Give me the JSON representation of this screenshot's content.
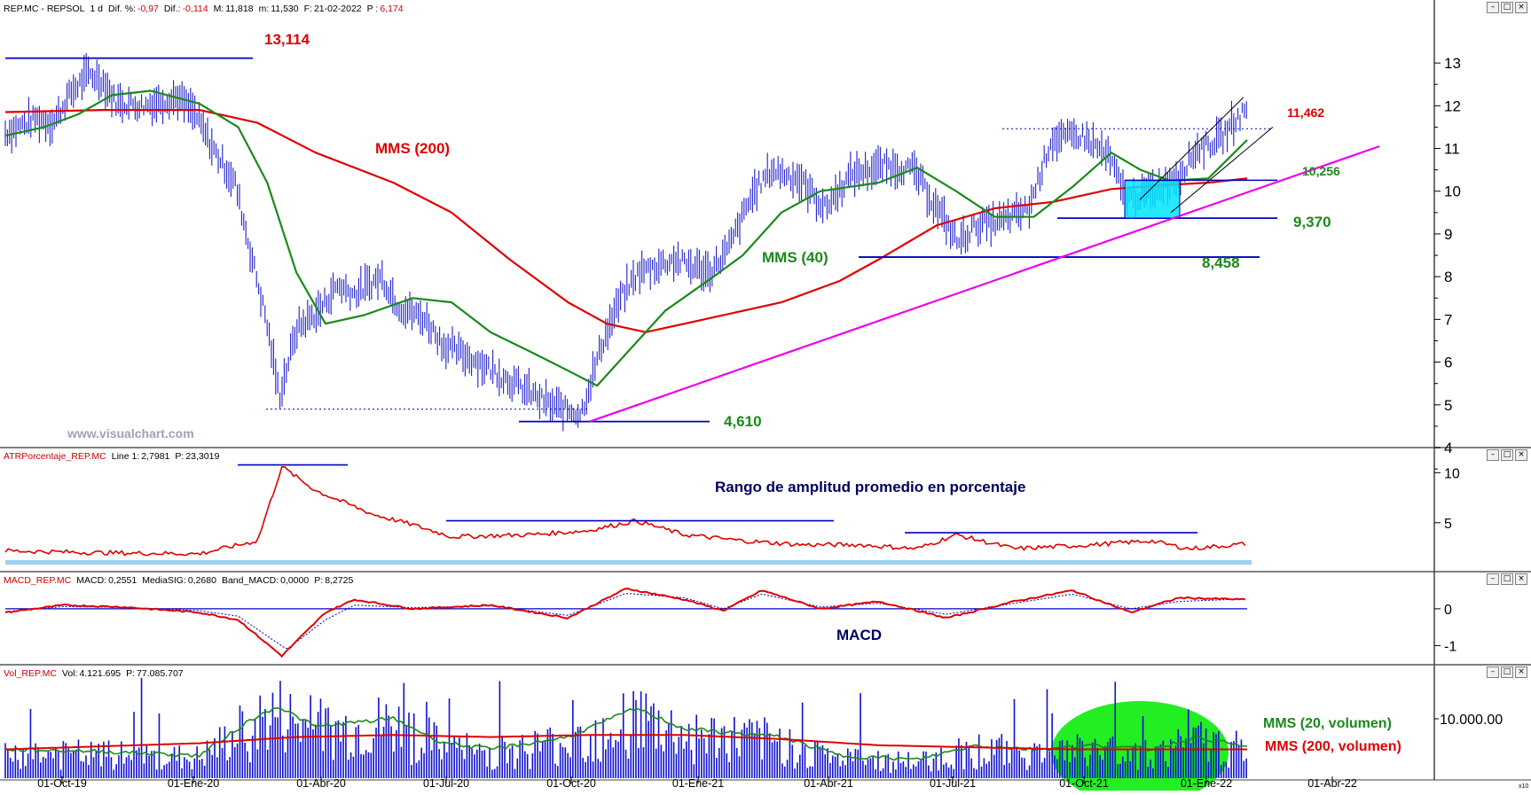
{
  "panels": {
    "price": {
      "header": {
        "symbol": "REP.MC - REPSOL",
        "period": "1 d",
        "dif_pct_label": "Dif. %:",
        "dif_pct": "-0,97",
        "dif_label": "Dif.:",
        "dif": "-0,114",
        "max_label": "M:",
        "max": "11,818",
        "min_label": "m:",
        "min": "11,530",
        "date_label": "F:",
        "date": "21-02-2022",
        "p_label": "P :",
        "p": "6,174"
      },
      "watermark": "www.visualchart.com",
      "annotations": {
        "high": "13,114",
        "low": "4,610",
        "mms200": "MMS (200)",
        "mms40": "MMS (40)",
        "resist": "11,462",
        "mid": "10,256",
        "sup1": "9,370",
        "sup2": "8,458"
      },
      "y_ticks": [
        "13",
        "12",
        "11",
        "10",
        "9",
        "8",
        "7",
        "6",
        "5",
        "4"
      ]
    },
    "atr": {
      "header": {
        "name": "ATRPorcentaje_REP.MC",
        "line_label": "Line 1:",
        "line": "2,7981",
        "p_label": "P:",
        "p": "23,3019"
      },
      "annotation": "Rango de amplitud promedio en porcentaje",
      "y_ticks": [
        "10",
        "5"
      ]
    },
    "macd": {
      "header": {
        "name": "MACD_REP.MC",
        "macd_label": "MACD:",
        "macd": "0,2551",
        "sig_label": "MediaSIG:",
        "sig": "0,2680",
        "band_label": "Band_MACD:",
        "band": "0,0000",
        "p_label": "P:",
        "p": "8,2725"
      },
      "annotation": "MACD",
      "y_ticks": [
        "0",
        "-1"
      ]
    },
    "vol": {
      "header": {
        "name": "Vol_REP.MC",
        "vol_label": "Vol:",
        "vol": "4.121.695",
        "p_label": "P:",
        "p": "77.085.707"
      },
      "annotations": {
        "mms20": "MMS (20, volumen)",
        "mms200": "MMS (200, volumen)"
      },
      "y_ticks": [
        "10.000.00"
      ],
      "scale_mark": "x10"
    }
  },
  "x_axis": [
    "01-Oct-19",
    "01-Ene-20",
    "01-Abr-20",
    "01-Jul-20",
    "01-Oct-20",
    "01-Ene-21",
    "01-Abr-21",
    "01-Jul-21",
    "01-Oct-21",
    "01-Ene-22",
    "01-Abr-22"
  ],
  "colors": {
    "price_bars": "#1f1fcf",
    "mms200": "#e00000",
    "mms40": "#1a8a1a",
    "trend": "#ee00ee",
    "levels": "#0000c0",
    "atr": "#e00000",
    "volume": "#1010d0",
    "vol_zone": "#22ee22",
    "zone_box": "#00e5ff"
  },
  "chart_data": [
    {
      "type": "line",
      "title": "REP.MC - REPSOL",
      "ylim": [
        4,
        13.5
      ],
      "series": [
        {
          "name": "MMS (40)",
          "points": [
            [
              0,
              11.3
            ],
            [
              40,
              11.5
            ],
            [
              75,
              11.8
            ],
            [
              110,
              12.25
            ],
            [
              150,
              12.35
            ],
            [
              200,
              12.05
            ],
            [
              240,
              11.5
            ],
            [
              270,
              10.2
            ],
            [
              300,
              8.1
            ],
            [
              330,
              6.9
            ],
            [
              370,
              7.1
            ],
            [
              420,
              7.5
            ],
            [
              460,
              7.4
            ],
            [
              500,
              6.7
            ],
            [
              545,
              6.2
            ],
            [
              580,
              5.8
            ],
            [
              610,
              5.45
            ],
            [
              640,
              6.2
            ],
            [
              680,
              7.2
            ],
            [
              730,
              8.0
            ],
            [
              760,
              8.5
            ],
            [
              800,
              9.5
            ],
            [
              840,
              10.0
            ],
            [
              900,
              10.2
            ],
            [
              940,
              10.55
            ],
            [
              980,
              10.0
            ],
            [
              1020,
              9.4
            ],
            [
              1060,
              9.4
            ],
            [
              1100,
              10.1
            ],
            [
              1140,
              10.9
            ],
            [
              1170,
              10.5
            ],
            [
              1200,
              10.25
            ],
            [
              1240,
              10.3
            ],
            [
              1280,
              11.2
            ]
          ]
        },
        {
          "name": "MMS (200)",
          "points": [
            [
              0,
              11.85
            ],
            [
              100,
              11.9
            ],
            [
              200,
              11.9
            ],
            [
              260,
              11.6
            ],
            [
              320,
              10.9
            ],
            [
              400,
              10.2
            ],
            [
              460,
              9.5
            ],
            [
              520,
              8.4
            ],
            [
              580,
              7.4
            ],
            [
              620,
              6.9
            ],
            [
              660,
              6.7
            ],
            [
              720,
              7.0
            ],
            [
              800,
              7.4
            ],
            [
              860,
              7.9
            ],
            [
              900,
              8.4
            ],
            [
              960,
              9.2
            ],
            [
              1020,
              9.6
            ],
            [
              1080,
              9.75
            ],
            [
              1140,
              10.05
            ],
            [
              1200,
              10.15
            ],
            [
              1240,
              10.2
            ],
            [
              1280,
              10.3
            ]
          ]
        }
      ]
    },
    {
      "type": "line",
      "title": "ATRPorcentaje_REP.MC",
      "ylim": [
        1,
        11
      ],
      "series": [
        {
          "name": "ATR %",
          "points": [
            [
              0,
              2.2
            ],
            [
              100,
              2.0
            ],
            [
              200,
              1.9
            ],
            [
              260,
              3.2
            ],
            [
              285,
              10.6
            ],
            [
              320,
              8.2
            ],
            [
              380,
              5.8
            ],
            [
              420,
              4.8
            ],
            [
              460,
              3.6
            ],
            [
              540,
              3.8
            ],
            [
              600,
              4.2
            ],
            [
              650,
              5.2
            ],
            [
              700,
              3.8
            ],
            [
              760,
              3.2
            ],
            [
              820,
              2.8
            ],
            [
              880,
              2.8
            ],
            [
              940,
              2.4
            ],
            [
              980,
              3.8
            ],
            [
              1040,
              2.4
            ],
            [
              1120,
              2.8
            ],
            [
              1180,
              3.2
            ],
            [
              1220,
              2.4
            ],
            [
              1280,
              2.9
            ]
          ]
        }
      ]
    },
    {
      "type": "line",
      "title": "MACD_REP.MC",
      "ylim": [
        -1.4,
        0.6
      ],
      "series": [
        {
          "name": "MACD",
          "points": [
            [
              0,
              -0.1
            ],
            [
              60,
              0.1
            ],
            [
              120,
              0.05
            ],
            [
              200,
              -0.1
            ],
            [
              240,
              -0.3
            ],
            [
              285,
              -1.28
            ],
            [
              330,
              -0.1
            ],
            [
              360,
              0.25
            ],
            [
              420,
              0.0
            ],
            [
              500,
              0.1
            ],
            [
              580,
              -0.25
            ],
            [
              640,
              0.55
            ],
            [
              700,
              0.25
            ],
            [
              740,
              -0.05
            ],
            [
              780,
              0.5
            ],
            [
              840,
              0.0
            ],
            [
              900,
              0.2
            ],
            [
              970,
              -0.25
            ],
            [
              1040,
              0.2
            ],
            [
              1100,
              0.5
            ],
            [
              1160,
              -0.1
            ],
            [
              1210,
              0.3
            ],
            [
              1280,
              0.25
            ]
          ]
        },
        {
          "name": "MediaSIG",
          "points": [
            [
              0,
              -0.08
            ],
            [
              60,
              0.06
            ],
            [
              120,
              0.04
            ],
            [
              200,
              -0.05
            ],
            [
              240,
              -0.2
            ],
            [
              290,
              -1.1
            ],
            [
              330,
              -0.3
            ],
            [
              360,
              0.1
            ],
            [
              420,
              0.03
            ],
            [
              500,
              0.08
            ],
            [
              580,
              -0.18
            ],
            [
              640,
              0.42
            ],
            [
              700,
              0.3
            ],
            [
              740,
              0.0
            ],
            [
              780,
              0.4
            ],
            [
              840,
              0.05
            ],
            [
              900,
              0.15
            ],
            [
              970,
              -0.15
            ],
            [
              1040,
              0.15
            ],
            [
              1100,
              0.4
            ],
            [
              1160,
              0.0
            ],
            [
              1210,
              0.2
            ],
            [
              1280,
              0.27
            ]
          ]
        }
      ]
    },
    {
      "type": "bar",
      "title": "Vol_REP.MC",
      "ylim": [
        0,
        100
      ],
      "series": [
        {
          "name": "MMS (20, volumen)",
          "points": [
            [
              0,
              28
            ],
            [
              100,
              26
            ],
            [
              200,
              22
            ],
            [
              250,
              55
            ],
            [
              280,
              70
            ],
            [
              320,
              50
            ],
            [
              400,
              58
            ],
            [
              450,
              35
            ],
            [
              500,
              28
            ],
            [
              580,
              40
            ],
            [
              650,
              68
            ],
            [
              700,
              48
            ],
            [
              800,
              40
            ],
            [
              860,
              22
            ],
            [
              940,
              18
            ],
            [
              1000,
              32
            ],
            [
              1060,
              28
            ],
            [
              1120,
              32
            ],
            [
              1180,
              28
            ],
            [
              1230,
              40
            ],
            [
              1280,
              30
            ]
          ]
        },
        {
          "name": "MMS (200, volumen)",
          "points": [
            [
              0,
              28
            ],
            [
              200,
              34
            ],
            [
              300,
              40
            ],
            [
              400,
              42
            ],
            [
              500,
              40
            ],
            [
              600,
              42
            ],
            [
              700,
              42
            ],
            [
              800,
              38
            ],
            [
              900,
              32
            ],
            [
              1000,
              30
            ],
            [
              1100,
              28
            ],
            [
              1200,
              28
            ],
            [
              1280,
              28
            ]
          ]
        }
      ]
    }
  ]
}
